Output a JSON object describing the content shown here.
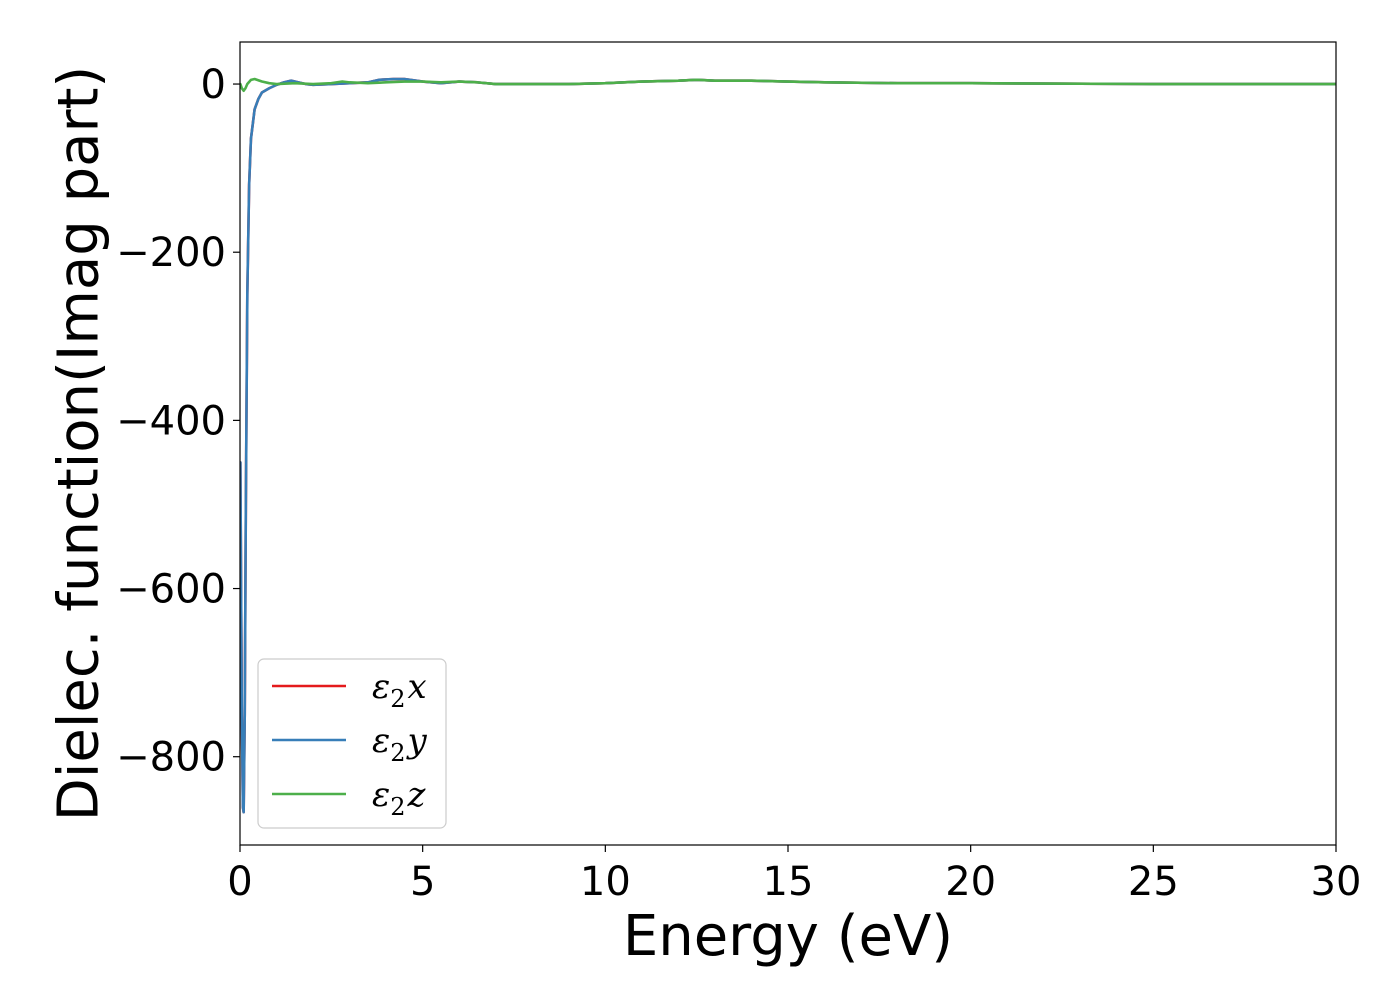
{
  "chart_data": {
    "type": "line",
    "xlabel": "Energy (eV)",
    "ylabel": "Dielec. function(Imag part)",
    "xlim": [
      0,
      30
    ],
    "ylim": [
      -905,
      50
    ],
    "xticks": [
      0,
      5,
      10,
      15,
      20,
      25,
      30
    ],
    "yticks": [
      0,
      -200,
      -400,
      -600,
      -800
    ],
    "xtick_labels": [
      "0",
      "5",
      "10",
      "15",
      "20",
      "25",
      "30"
    ],
    "ytick_labels": [
      "0",
      "−200",
      "−400",
      "−600",
      "−800"
    ],
    "grid": false,
    "legend_position": "lower-left",
    "series": [
      {
        "name_base": "ε",
        "name_sub": "2",
        "name_suffix": "x",
        "color": "#e41a1c",
        "x": [
          0.01,
          0.05,
          0.08,
          0.1,
          0.13,
          0.16,
          0.2,
          0.25,
          0.3,
          0.4,
          0.5,
          0.6,
          0.8,
          1.0,
          1.2,
          1.4,
          1.6,
          1.8,
          2.0,
          2.5,
          3.0,
          3.5,
          3.8,
          4.2,
          4.5,
          5.0,
          5.5,
          6.0,
          6.5,
          7.0,
          8.0,
          9.0,
          10.0,
          11.0,
          12.0,
          12.5,
          13.0,
          14.0,
          15.0,
          16.0,
          18.0,
          20.0,
          25.0,
          30.0
        ],
        "y": [
          -450,
          -750,
          -860,
          -866,
          -750,
          -500,
          -250,
          -120,
          -65,
          -30,
          -18,
          -10,
          -5,
          -1,
          2,
          4,
          2,
          0,
          -1,
          0,
          1,
          2,
          5,
          6,
          6,
          3,
          1,
          3,
          2,
          0,
          0,
          0,
          1,
          3,
          4,
          5,
          4,
          4,
          3,
          2,
          1,
          1,
          0,
          0
        ]
      },
      {
        "name_base": "ε",
        "name_sub": "2",
        "name_suffix": "y",
        "color": "#377eb8",
        "x": [
          0.01,
          0.05,
          0.08,
          0.1,
          0.13,
          0.16,
          0.2,
          0.25,
          0.3,
          0.4,
          0.5,
          0.6,
          0.8,
          1.0,
          1.2,
          1.4,
          1.6,
          1.8,
          2.0,
          2.5,
          3.0,
          3.5,
          3.8,
          4.2,
          4.5,
          5.0,
          5.5,
          6.0,
          6.5,
          7.0,
          8.0,
          9.0,
          10.0,
          11.0,
          12.0,
          12.5,
          13.0,
          14.0,
          15.0,
          16.0,
          18.0,
          20.0,
          25.0,
          30.0
        ],
        "y": [
          -450,
          -750,
          -860,
          -866,
          -750,
          -500,
          -250,
          -120,
          -65,
          -30,
          -18,
          -10,
          -5,
          -1,
          2,
          4,
          2,
          0,
          -1,
          0,
          1,
          2,
          5,
          6,
          6,
          3,
          1,
          3,
          2,
          0,
          0,
          0,
          1,
          3,
          4,
          5,
          4,
          4,
          3,
          2,
          1,
          1,
          0,
          0
        ]
      },
      {
        "name_base": "ε",
        "name_sub": "2",
        "name_suffix": "z",
        "color": "#4daf4a",
        "x": [
          0.01,
          0.05,
          0.1,
          0.15,
          0.2,
          0.3,
          0.4,
          0.6,
          0.8,
          1.0,
          1.5,
          2.0,
          2.5,
          2.8,
          3.0,
          3.5,
          4.0,
          4.5,
          5.0,
          5.5,
          6.0,
          6.5,
          7.0,
          8.0,
          9.0,
          10.0,
          11.0,
          12.0,
          12.5,
          13.0,
          14.0,
          15.0,
          16.0,
          18.0,
          20.0,
          25.0,
          30.0
        ],
        "y": [
          0,
          -5,
          -8,
          -5,
          0,
          5,
          6,
          3,
          1,
          0,
          1,
          0,
          1,
          3,
          2,
          1,
          2,
          3,
          3,
          2,
          3,
          2,
          0,
          0,
          0,
          1,
          3,
          4,
          5,
          4,
          4,
          3,
          2,
          1,
          1,
          0,
          0
        ]
      }
    ]
  }
}
